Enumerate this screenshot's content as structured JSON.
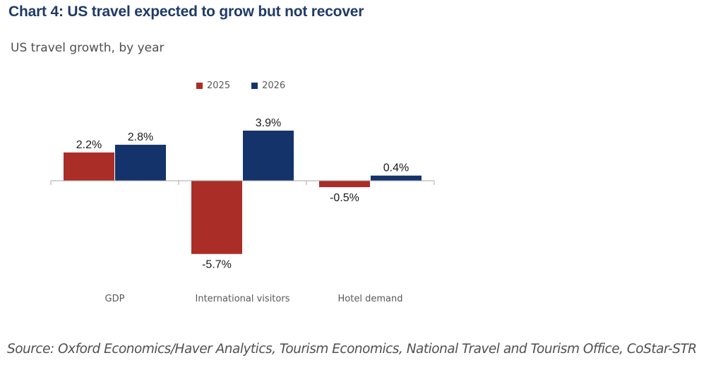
{
  "header": {
    "title": "Chart 4: US travel expected to grow but not recover",
    "subtitle": "US travel growth, by year"
  },
  "footer": {
    "source": "Source: Oxford Economics/Haver Analytics, Tourism Economics, National Travel and Tourism Office, CoStar-STR"
  },
  "colors": {
    "series_2025": "#ab2d27",
    "series_2026": "#13336a",
    "axis": "#a6a6a6"
  },
  "chart_data": {
    "type": "bar",
    "title": "US travel growth, by year",
    "xlabel": "",
    "ylabel": "",
    "categories": [
      "GDP",
      "International visitors",
      "Hotel demand"
    ],
    "series": [
      {
        "name": "2025",
        "values": [
          2.2,
          -5.7,
          -0.5
        ],
        "labels": [
          "2.2%",
          "-5.7%",
          "-0.5%"
        ]
      },
      {
        "name": "2026",
        "values": [
          2.8,
          3.9,
          0.4
        ],
        "labels": [
          "2.8%",
          "3.9%",
          "0.4%"
        ]
      }
    ],
    "legend": "top-center",
    "grid": false,
    "value_unit": "%"
  }
}
